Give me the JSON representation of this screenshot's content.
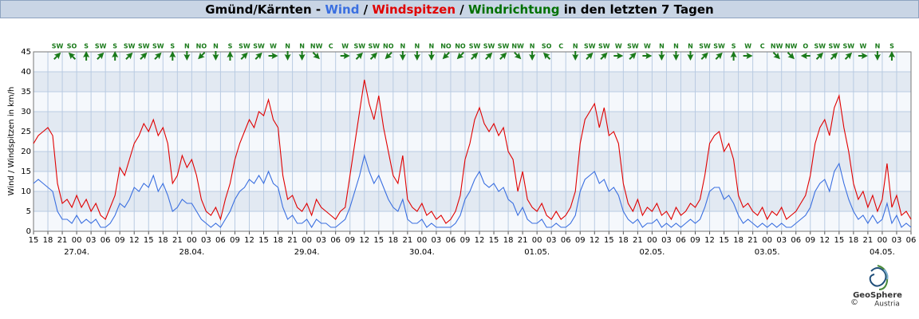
{
  "chart_data": {
    "type": "line",
    "title_parts": [
      {
        "text": "Gmünd/Kärnten - ",
        "color": "#000000"
      },
      {
        "text": "Wind",
        "color": "#3a6fe0"
      },
      {
        "text": " / ",
        "color": "#000000"
      },
      {
        "text": "Windspitzen",
        "color": "#e00000"
      },
      {
        "text": " / ",
        "color": "#000000"
      },
      {
        "text": "Windrichtung",
        "color": "#007000"
      },
      {
        "text": " in den letzten 7 Tagen",
        "color": "#000000"
      }
    ],
    "ylabel": "Wind / Windspitzen in km/h",
    "ylim": [
      0,
      45
    ],
    "yticks": [
      0,
      5,
      10,
      15,
      20,
      25,
      30,
      35,
      40,
      45
    ],
    "grid": true,
    "xlim": [
      "26.04. 15",
      "04.05. 06"
    ],
    "xticks": [
      {
        "value": "26.04. 15",
        "label": "15"
      },
      {
        "value": "26.04. 18",
        "label": "18"
      },
      {
        "value": "26.04. 21",
        "label": "21"
      },
      {
        "value": "27.04. 00",
        "label": "00"
      },
      {
        "value": "27.04. 03",
        "label": "03"
      },
      {
        "value": "27.04. 06",
        "label": "06"
      },
      {
        "value": "27.04. 09",
        "label": "09"
      },
      {
        "value": "27.04. 12",
        "label": "12"
      },
      {
        "value": "27.04. 15",
        "label": "15"
      },
      {
        "value": "27.04. 18",
        "label": "18"
      },
      {
        "value": "27.04. 21",
        "label": "21"
      },
      {
        "value": "28.04. 00",
        "label": "00"
      },
      {
        "value": "28.04. 03",
        "label": "03"
      },
      {
        "value": "28.04. 06",
        "label": "06"
      },
      {
        "value": "28.04. 09",
        "label": "09"
      },
      {
        "value": "28.04. 12",
        "label": "12"
      },
      {
        "value": "28.04. 15",
        "label": "15"
      },
      {
        "value": "28.04. 18",
        "label": "18"
      },
      {
        "value": "28.04. 21",
        "label": "21"
      },
      {
        "value": "29.04. 00",
        "label": "00"
      },
      {
        "value": "29.04. 03",
        "label": "03"
      },
      {
        "value": "29.04. 06",
        "label": "06"
      },
      {
        "value": "29.04. 09",
        "label": "09"
      },
      {
        "value": "29.04. 12",
        "label": "12"
      },
      {
        "value": "29.04. 15",
        "label": "15"
      },
      {
        "value": "29.04. 18",
        "label": "18"
      },
      {
        "value": "29.04. 21",
        "label": "21"
      },
      {
        "value": "30.04. 00",
        "label": "00"
      },
      {
        "value": "30.04. 03",
        "label": "03"
      },
      {
        "value": "30.04. 06",
        "label": "06"
      },
      {
        "value": "30.04. 09",
        "label": "09"
      },
      {
        "value": "30.04. 12",
        "label": "12"
      },
      {
        "value": "30.04. 15",
        "label": "15"
      },
      {
        "value": "30.04. 18",
        "label": "18"
      },
      {
        "value": "30.04. 21",
        "label": "21"
      },
      {
        "value": "01.05. 00",
        "label": "00"
      },
      {
        "value": "01.05. 03",
        "label": "03"
      },
      {
        "value": "01.05. 06",
        "label": "06"
      },
      {
        "value": "01.05. 09",
        "label": "09"
      },
      {
        "value": "01.05. 12",
        "label": "12"
      },
      {
        "value": "01.05. 15",
        "label": "15"
      },
      {
        "value": "01.05. 18",
        "label": "18"
      },
      {
        "value": "01.05. 21",
        "label": "21"
      },
      {
        "value": "02.05. 00",
        "label": "00"
      },
      {
        "value": "02.05. 03",
        "label": "03"
      },
      {
        "value": "02.05. 06",
        "label": "06"
      },
      {
        "value": "02.05. 09",
        "label": "09"
      },
      {
        "value": "02.05. 12",
        "label": "12"
      },
      {
        "value": "02.05. 15",
        "label": "15"
      },
      {
        "value": "02.05. 18",
        "label": "18"
      },
      {
        "value": "02.05. 21",
        "label": "21"
      },
      {
        "value": "03.05. 00",
        "label": "00"
      },
      {
        "value": "03.05. 03",
        "label": "03"
      },
      {
        "value": "03.05. 06",
        "label": "06"
      },
      {
        "value": "03.05. 09",
        "label": "09"
      },
      {
        "value": "03.05. 12",
        "label": "12"
      },
      {
        "value": "03.05. 15",
        "label": "15"
      },
      {
        "value": "03.05. 18",
        "label": "18"
      },
      {
        "value": "03.05. 21",
        "label": "21"
      },
      {
        "value": "04.05. 00",
        "label": "00"
      },
      {
        "value": "04.05. 03",
        "label": "03"
      },
      {
        "value": "04.05. 06",
        "label": "06"
      }
    ],
    "date_ticks": [
      {
        "value": "27.04. 00",
        "label": "27.04."
      },
      {
        "value": "28.04. 00",
        "label": "28.04."
      },
      {
        "value": "29.04. 00",
        "label": "29.04."
      },
      {
        "value": "30.04. 00",
        "label": "30.04."
      },
      {
        "value": "01.05. 00",
        "label": "01.05."
      },
      {
        "value": "02.05. 00",
        "label": "02.05."
      },
      {
        "value": "03.05. 00",
        "label": "03.05."
      },
      {
        "value": "04.05. 00",
        "label": "04.05."
      }
    ],
    "x": [
      "26.04. 15",
      "26.04. 16",
      "26.04. 17",
      "26.04. 18",
      "26.04. 19",
      "26.04. 20",
      "26.04. 21",
      "26.04. 22",
      "26.04. 23",
      "27.04. 00",
      "27.04. 01",
      "27.04. 02",
      "27.04. 03",
      "27.04. 04",
      "27.04. 05",
      "27.04. 06",
      "27.04. 07",
      "27.04. 08",
      "27.04. 09",
      "27.04. 10",
      "27.04. 11",
      "27.04. 12",
      "27.04. 13",
      "27.04. 14",
      "27.04. 15",
      "27.04. 16",
      "27.04. 17",
      "27.04. 18",
      "27.04. 19",
      "27.04. 20",
      "27.04. 21",
      "27.04. 22",
      "27.04. 23",
      "28.04. 00",
      "28.04. 01",
      "28.04. 02",
      "28.04. 03",
      "28.04. 04",
      "28.04. 05",
      "28.04. 06",
      "28.04. 07",
      "28.04. 08",
      "28.04. 09",
      "28.04. 10",
      "28.04. 11",
      "28.04. 12",
      "28.04. 13",
      "28.04. 14",
      "28.04. 15",
      "28.04. 16",
      "28.04. 17",
      "28.04. 18",
      "28.04. 19",
      "28.04. 20",
      "28.04. 21",
      "28.04. 22",
      "28.04. 23",
      "29.04. 00",
      "29.04. 01",
      "29.04. 02",
      "29.04. 03",
      "29.04. 04",
      "29.04. 05",
      "29.04. 06",
      "29.04. 07",
      "29.04. 08",
      "29.04. 09",
      "29.04. 10",
      "29.04. 11",
      "29.04. 12",
      "29.04. 13",
      "29.04. 14",
      "29.04. 15",
      "29.04. 16",
      "29.04. 17",
      "29.04. 18",
      "29.04. 19",
      "29.04. 20",
      "29.04. 21",
      "29.04. 22",
      "29.04. 23",
      "30.04. 00",
      "30.04. 01",
      "30.04. 02",
      "30.04. 03",
      "30.04. 04",
      "30.04. 05",
      "30.04. 06",
      "30.04. 07",
      "30.04. 08",
      "30.04. 09",
      "30.04. 10",
      "30.04. 11",
      "30.04. 12",
      "30.04. 13",
      "30.04. 14",
      "30.04. 15",
      "30.04. 16",
      "30.04. 17",
      "30.04. 18",
      "30.04. 19",
      "30.04. 20",
      "30.04. 21",
      "30.04. 22",
      "30.04. 23",
      "01.05. 00",
      "01.05. 01",
      "01.05. 02",
      "01.05. 03",
      "01.05. 04",
      "01.05. 05",
      "01.05. 06",
      "01.05. 07",
      "01.05. 08",
      "01.05. 09",
      "01.05. 10",
      "01.05. 11",
      "01.05. 12",
      "01.05. 13",
      "01.05. 14",
      "01.05. 15",
      "01.05. 16",
      "01.05. 17",
      "01.05. 18",
      "01.05. 19",
      "01.05. 20",
      "01.05. 21",
      "01.05. 22",
      "01.05. 23",
      "02.05. 00",
      "02.05. 01",
      "02.05. 02",
      "02.05. 03",
      "02.05. 04",
      "02.05. 05",
      "02.05. 06",
      "02.05. 07",
      "02.05. 08",
      "02.05. 09",
      "02.05. 10",
      "02.05. 11",
      "02.05. 12",
      "02.05. 13",
      "02.05. 14",
      "02.05. 15",
      "02.05. 16",
      "02.05. 17",
      "02.05. 18",
      "02.05. 19",
      "02.05. 20",
      "02.05. 21",
      "02.05. 22",
      "02.05. 23",
      "03.05. 00",
      "03.05. 01",
      "03.05. 02",
      "03.05. 03",
      "03.05. 04",
      "03.05. 05",
      "03.05. 06",
      "03.05. 07",
      "03.05. 08",
      "03.05. 09",
      "03.05. 10",
      "03.05. 11",
      "03.05. 12",
      "03.05. 13",
      "03.05. 14",
      "03.05. 15",
      "03.05. 16",
      "03.05. 17",
      "03.05. 18",
      "03.05. 19",
      "03.05. 20",
      "03.05. 21",
      "03.05. 22",
      "03.05. 23",
      "04.05. 00",
      "04.05. 01",
      "04.05. 02",
      "04.05. 03",
      "04.05. 04",
      "04.05. 05",
      "04.05. 06"
    ],
    "series": [
      {
        "name": "Windspitzen",
        "color": "#e00000",
        "values": [
          22,
          24,
          25,
          26,
          24,
          12,
          7,
          8,
          6,
          9,
          6,
          8,
          5,
          7,
          4,
          3,
          6,
          9,
          16,
          14,
          18,
          22,
          24,
          27,
          25,
          28,
          24,
          26,
          22,
          12,
          14,
          19,
          16,
          18,
          14,
          8,
          5,
          4,
          6,
          3,
          8,
          12,
          18,
          22,
          25,
          28,
          26,
          30,
          29,
          33,
          28,
          26,
          14,
          8,
          9,
          6,
          5,
          7,
          4,
          8,
          6,
          5,
          4,
          3,
          5,
          6,
          14,
          22,
          30,
          38,
          32,
          28,
          34,
          26,
          20,
          14,
          12,
          19,
          8,
          6,
          5,
          7,
          4,
          5,
          3,
          4,
          2,
          3,
          5,
          9,
          18,
          22,
          28,
          31,
          27,
          25,
          27,
          24,
          26,
          20,
          18,
          10,
          15,
          8,
          6,
          5,
          7,
          4,
          3,
          5,
          3,
          4,
          6,
          10,
          22,
          28,
          30,
          32,
          26,
          31,
          24,
          25,
          22,
          12,
          7,
          5,
          8,
          4,
          6,
          5,
          7,
          4,
          5,
          3,
          6,
          4,
          5,
          7,
          6,
          8,
          14,
          22,
          24,
          25,
          20,
          22,
          18,
          9,
          6,
          7,
          5,
          4,
          6,
          3,
          5,
          4,
          6,
          3,
          4,
          5,
          7,
          9,
          14,
          22,
          26,
          28,
          24,
          31,
          34,
          26,
          20,
          12,
          8,
          10,
          6,
          9,
          5,
          8,
          17,
          6,
          9,
          4,
          5,
          3
        ]
      },
      {
        "name": "Wind",
        "color": "#3a6fe0",
        "values": [
          12,
          13,
          12,
          11,
          10,
          5,
          3,
          3,
          2,
          4,
          2,
          3,
          2,
          3,
          1,
          1,
          2,
          4,
          7,
          6,
          8,
          11,
          10,
          12,
          11,
          14,
          10,
          12,
          9,
          5,
          6,
          8,
          7,
          7,
          5,
          3,
          2,
          1,
          2,
          1,
          3,
          5,
          8,
          10,
          11,
          13,
          12,
          14,
          12,
          15,
          12,
          11,
          6,
          3,
          4,
          2,
          2,
          3,
          1,
          3,
          2,
          2,
          1,
          1,
          2,
          3,
          6,
          10,
          14,
          19,
          15,
          12,
          14,
          11,
          8,
          6,
          5,
          8,
          3,
          2,
          2,
          3,
          1,
          2,
          1,
          1,
          1,
          1,
          2,
          4,
          8,
          10,
          13,
          15,
          12,
          11,
          12,
          10,
          11,
          8,
          7,
          4,
          6,
          3,
          2,
          2,
          3,
          1,
          1,
          2,
          1,
          1,
          2,
          4,
          10,
          13,
          14,
          15,
          12,
          13,
          10,
          11,
          9,
          5,
          3,
          2,
          3,
          1,
          2,
          2,
          3,
          1,
          2,
          1,
          2,
          1,
          2,
          3,
          2,
          3,
          6,
          10,
          11,
          11,
          8,
          9,
          7,
          4,
          2,
          3,
          2,
          1,
          2,
          1,
          2,
          1,
          2,
          1,
          1,
          2,
          3,
          4,
          6,
          10,
          12,
          13,
          10,
          15,
          17,
          12,
          8,
          5,
          3,
          4,
          2,
          4,
          2,
          3,
          7,
          2,
          4,
          1,
          2,
          1
        ]
      }
    ],
    "direction_color": "#1a7a1a",
    "directions": [
      {
        "time": "26.04. 20",
        "label": "SW",
        "degrees": 225
      },
      {
        "time": "26.04. 23",
        "label": "SO",
        "degrees": 135
      },
      {
        "time": "27.04. 02",
        "label": "S",
        "degrees": 180
      },
      {
        "time": "27.04. 05",
        "label": "SW",
        "degrees": 225
      },
      {
        "time": "27.04. 08",
        "label": "S",
        "degrees": 180
      },
      {
        "time": "27.04. 11",
        "label": "SW",
        "degrees": 225
      },
      {
        "time": "27.04. 14",
        "label": "SW",
        "degrees": 225
      },
      {
        "time": "27.04. 17",
        "label": "SW",
        "degrees": 225
      },
      {
        "time": "27.04. 20",
        "label": "S",
        "degrees": 180
      },
      {
        "time": "27.04. 23",
        "label": "N",
        "degrees": 0
      },
      {
        "time": "28.04. 02",
        "label": "NO",
        "degrees": 45
      },
      {
        "time": "28.04. 05",
        "label": "N",
        "degrees": 0
      },
      {
        "time": "28.04. 08",
        "label": "S",
        "degrees": 180
      },
      {
        "time": "28.04. 11",
        "label": "SW",
        "degrees": 225
      },
      {
        "time": "28.04. 14",
        "label": "SW",
        "degrees": 225
      },
      {
        "time": "28.04. 17",
        "label": "W",
        "degrees": 270
      },
      {
        "time": "28.04. 20",
        "label": "N",
        "degrees": 0
      },
      {
        "time": "28.04. 23",
        "label": "N",
        "degrees": 0
      },
      {
        "time": "29.04. 02",
        "label": "NW",
        "degrees": 315
      },
      {
        "time": "29.04. 05",
        "label": "C",
        "degrees": null
      },
      {
        "time": "29.04. 08",
        "label": "W",
        "degrees": 270
      },
      {
        "time": "29.04. 11",
        "label": "SW",
        "degrees": 225
      },
      {
        "time": "29.04. 14",
        "label": "SW",
        "degrees": 225
      },
      {
        "time": "29.04. 17",
        "label": "NO",
        "degrees": 45
      },
      {
        "time": "29.04. 20",
        "label": "N",
        "degrees": 0
      },
      {
        "time": "29.04. 23",
        "label": "N",
        "degrees": 0
      },
      {
        "time": "30.04. 02",
        "label": "N",
        "degrees": 0
      },
      {
        "time": "30.04. 05",
        "label": "NO",
        "degrees": 45
      },
      {
        "time": "30.04. 08",
        "label": "NO",
        "degrees": 45
      },
      {
        "time": "30.04. 11",
        "label": "SW",
        "degrees": 225
      },
      {
        "time": "30.04. 14",
        "label": "SW",
        "degrees": 225
      },
      {
        "time": "30.04. 17",
        "label": "SW",
        "degrees": 225
      },
      {
        "time": "30.04. 20",
        "label": "NW",
        "degrees": 315
      },
      {
        "time": "30.04. 23",
        "label": "N",
        "degrees": 0
      },
      {
        "time": "01.05. 02",
        "label": "SO",
        "degrees": 135
      },
      {
        "time": "01.05. 05",
        "label": "C",
        "degrees": null
      },
      {
        "time": "01.05. 08",
        "label": "N",
        "degrees": 0
      },
      {
        "time": "01.05. 11",
        "label": "SW",
        "degrees": 225
      },
      {
        "time": "01.05. 14",
        "label": "SW",
        "degrees": 225
      },
      {
        "time": "01.05. 17",
        "label": "W",
        "degrees": 270
      },
      {
        "time": "01.05. 20",
        "label": "SW",
        "degrees": 225
      },
      {
        "time": "01.05. 23",
        "label": "W",
        "degrees": 270
      },
      {
        "time": "02.05. 02",
        "label": "N",
        "degrees": 0
      },
      {
        "time": "02.05. 05",
        "label": "N",
        "degrees": 0
      },
      {
        "time": "02.05. 08",
        "label": "N",
        "degrees": 0
      },
      {
        "time": "02.05. 11",
        "label": "SW",
        "degrees": 225
      },
      {
        "time": "02.05. 14",
        "label": "SW",
        "degrees": 225
      },
      {
        "time": "02.05. 17",
        "label": "S",
        "degrees": 180
      },
      {
        "time": "02.05. 20",
        "label": "W",
        "degrees": 270
      },
      {
        "time": "02.05. 23",
        "label": "C",
        "degrees": null
      },
      {
        "time": "03.05. 02",
        "label": "NW",
        "degrees": 315
      },
      {
        "time": "03.05. 05",
        "label": "NW",
        "degrees": 315
      },
      {
        "time": "03.05. 08",
        "label": "O",
        "degrees": 90
      },
      {
        "time": "03.05. 11",
        "label": "SW",
        "degrees": 225
      },
      {
        "time": "03.05. 14",
        "label": "SW",
        "degrees": 225
      },
      {
        "time": "03.05. 17",
        "label": "SW",
        "degrees": 225
      },
      {
        "time": "03.05. 20",
        "label": "W",
        "degrees": 270
      },
      {
        "time": "03.05. 23",
        "label": "N",
        "degrees": 0
      },
      {
        "time": "04.05. 02",
        "label": "S",
        "degrees": 180
      }
    ],
    "logo": {
      "name": "GeoSphere",
      "sub": "Austria",
      "copyright": "©"
    }
  }
}
